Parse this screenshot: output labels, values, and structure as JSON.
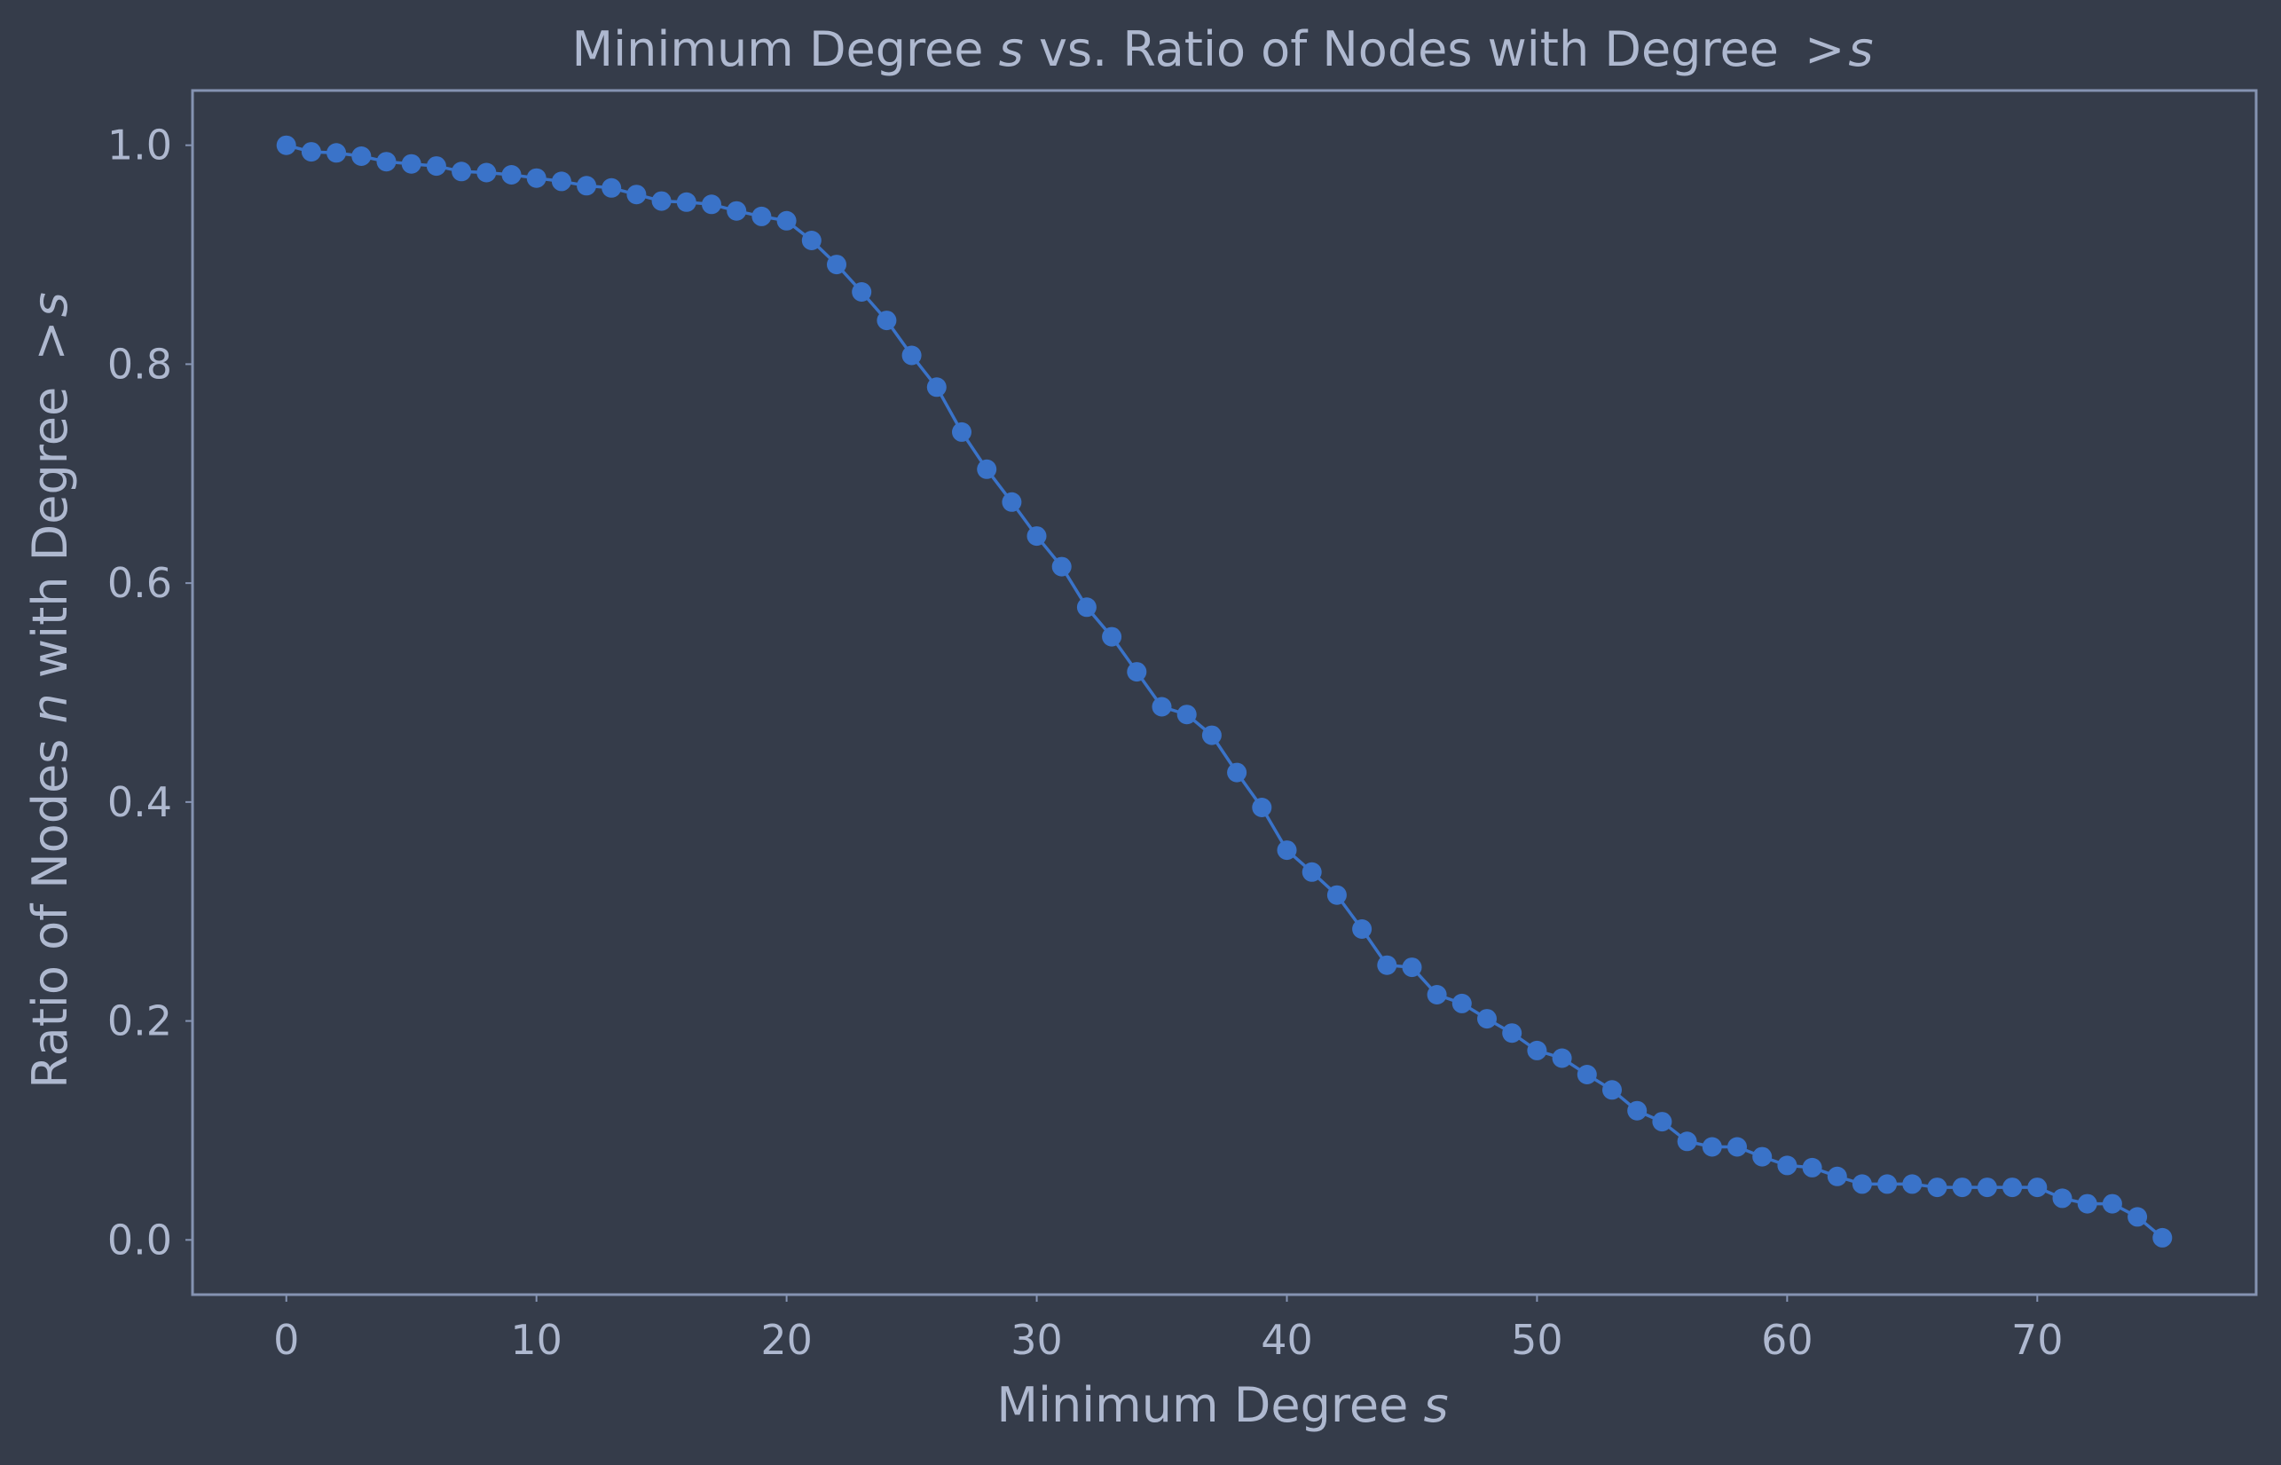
{
  "chart_data": {
    "type": "line",
    "title": {
      "pre": "Minimum Degree ",
      "var1": "s",
      "mid": " vs. Ratio of Nodes with Degree ",
      "gt": ">",
      "var2": "s"
    },
    "xlabel": {
      "pre": "Minimum Degree ",
      "var": "s"
    },
    "ylabel": {
      "pre": "Ratio of Nodes ",
      "var1": "n",
      "mid": " with Degree ",
      "gt": ">",
      "var2": "s"
    },
    "xlim": [
      -3.75,
      78.75
    ],
    "ylim": [
      -0.05,
      1.05
    ],
    "x_ticks": [
      "0",
      "10",
      "20",
      "30",
      "40",
      "50",
      "60",
      "70"
    ],
    "x_tick_values": [
      0,
      10,
      20,
      30,
      40,
      50,
      60,
      70
    ],
    "y_ticks": [
      "0.0",
      "0.2",
      "0.4",
      "0.6",
      "0.8",
      "1.0"
    ],
    "y_tick_values": [
      0.0,
      0.2,
      0.4,
      0.6,
      0.8,
      1.0
    ],
    "grid": false,
    "legend": "none",
    "colors": {
      "background": "#353c4a",
      "series": "#3a73c9",
      "text": "#aeb8cf",
      "frame": "#8593b2"
    },
    "series": [
      {
        "x": [
          0,
          1,
          2,
          3,
          4,
          5,
          6,
          7,
          8,
          9,
          10,
          11,
          12,
          13,
          14,
          15,
          16,
          17,
          18,
          19,
          20,
          21,
          22,
          23,
          24,
          25,
          26,
          27,
          28,
          29,
          30,
          31,
          32,
          33,
          34,
          35,
          36,
          37,
          38,
          39,
          40,
          41,
          42,
          43,
          44,
          45,
          46,
          47,
          48,
          49,
          50,
          51,
          52,
          53,
          54,
          55,
          56,
          57,
          58,
          59,
          60,
          61,
          62,
          63,
          64,
          65,
          66,
          67,
          68,
          69,
          70,
          71,
          72,
          73,
          74,
          75
        ],
        "y": [
          1.0,
          0.994,
          0.993,
          0.99,
          0.985,
          0.983,
          0.981,
          0.976,
          0.975,
          0.973,
          0.97,
          0.967,
          0.963,
          0.961,
          0.955,
          0.949,
          0.948,
          0.946,
          0.94,
          0.935,
          0.931,
          0.913,
          0.891,
          0.866,
          0.84,
          0.808,
          0.779,
          0.738,
          0.704,
          0.674,
          0.643,
          0.615,
          0.578,
          0.551,
          0.519,
          0.487,
          0.48,
          0.461,
          0.427,
          0.395,
          0.356,
          0.336,
          0.315,
          0.284,
          0.251,
          0.249,
          0.224,
          0.216,
          0.202,
          0.189,
          0.173,
          0.166,
          0.151,
          0.137,
          0.118,
          0.108,
          0.09,
          0.085,
          0.085,
          0.076,
          0.068,
          0.066,
          0.058,
          0.051,
          0.051,
          0.051,
          0.048,
          0.048,
          0.048,
          0.048,
          0.048,
          0.038,
          0.033,
          0.033,
          0.021,
          0.002
        ]
      }
    ]
  }
}
